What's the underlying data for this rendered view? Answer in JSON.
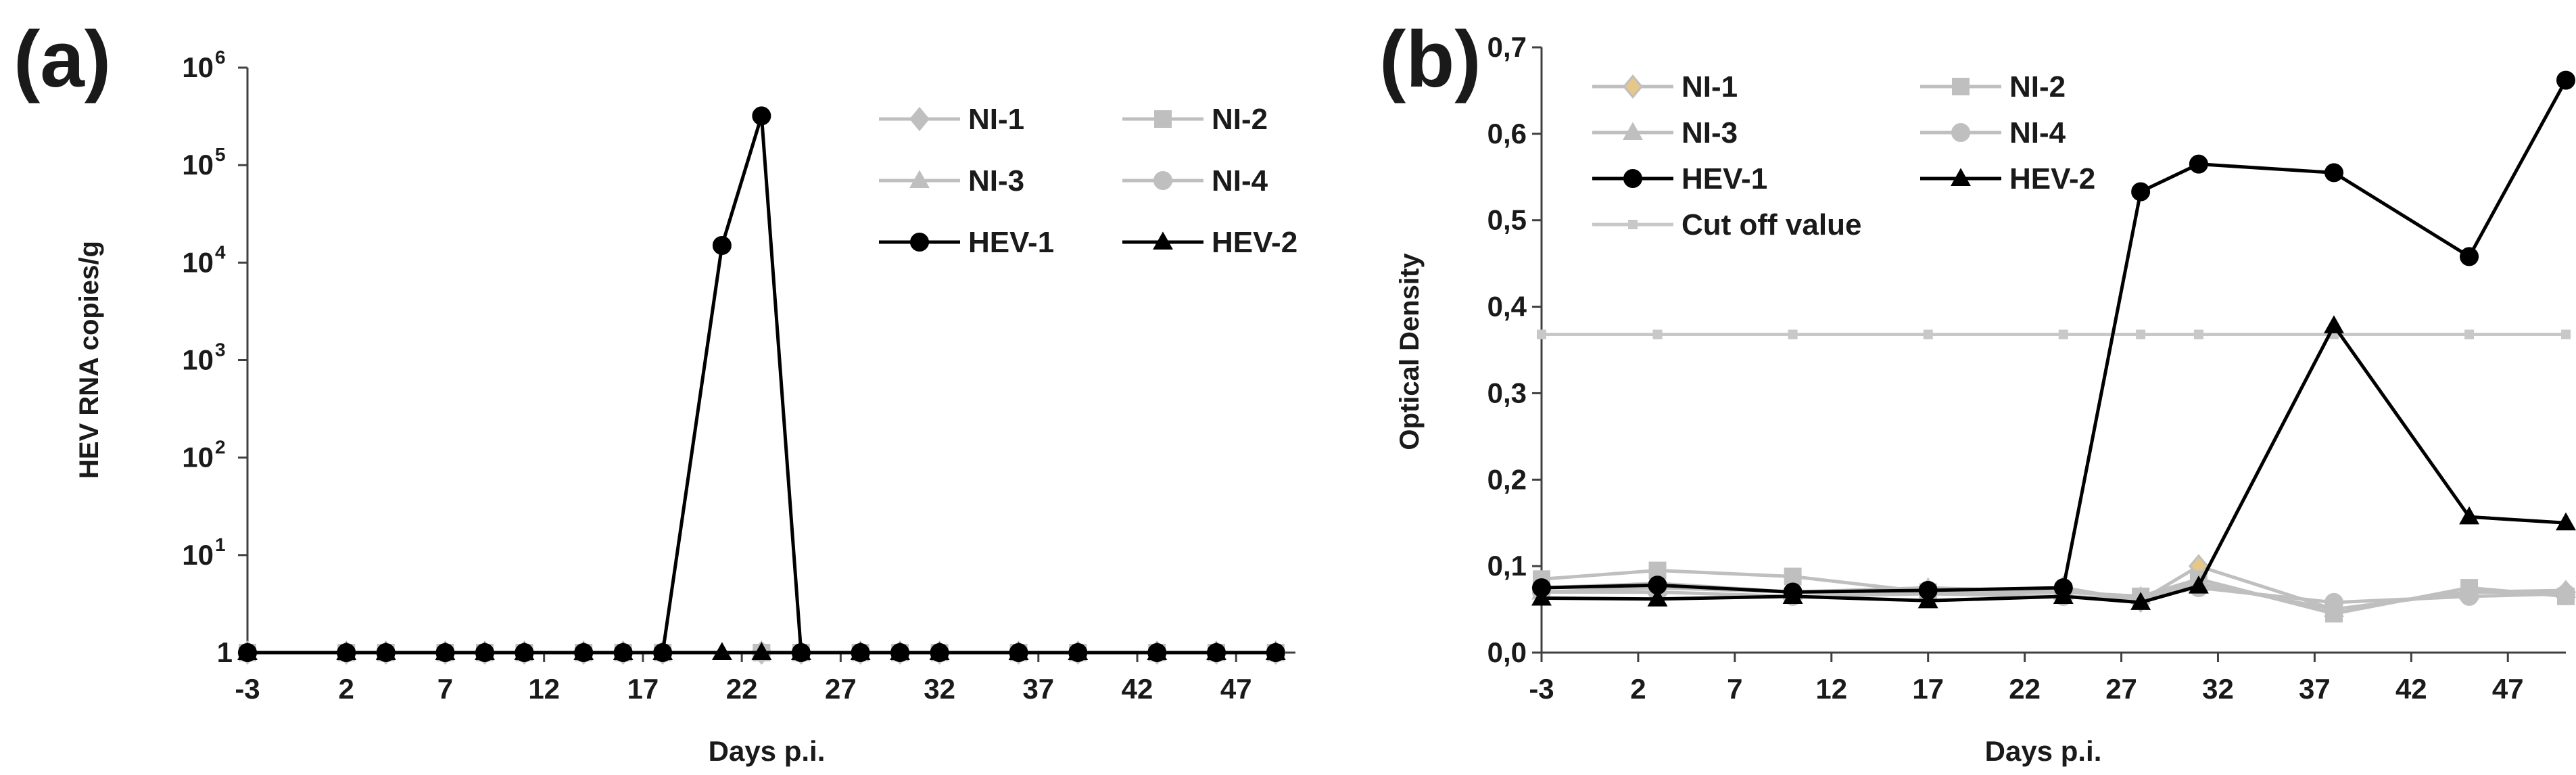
{
  "chart_data": [
    {
      "panel_label": "(a)",
      "type": "line",
      "yscale": "log",
      "xlabel": "Days p.i.",
      "ylabel": "HEV RNA copies/g",
      "xlim": [
        -3,
        50
      ],
      "xticks": [
        -3,
        2,
        7,
        12,
        17,
        22,
        27,
        32,
        37,
        42,
        47
      ],
      "ylim": [
        1,
        1000000
      ],
      "yticks": [
        {
          "value": 1,
          "base": "1",
          "exp": ""
        },
        {
          "value": 10,
          "base": "10",
          "exp": "1"
        },
        {
          "value": 100,
          "base": "10",
          "exp": "2"
        },
        {
          "value": 1000,
          "base": "10",
          "exp": "3"
        },
        {
          "value": 10000,
          "base": "10",
          "exp": "4"
        },
        {
          "value": 100000,
          "base": "10",
          "exp": "5"
        },
        {
          "value": 1000000,
          "base": "10",
          "exp": "6"
        }
      ],
      "legend_position": "top-right",
      "series": [
        {
          "name": "NI-1",
          "color": "#bfbfbf",
          "marker": "diamond",
          "x": [
            -3,
            2,
            4,
            7,
            9,
            11,
            14,
            16,
            18,
            23,
            25,
            28,
            30,
            32,
            36,
            39,
            43,
            46,
            49
          ],
          "y": [
            1,
            1,
            1,
            1,
            1,
            1,
            1,
            1,
            1,
            1,
            1,
            1,
            1,
            1,
            1,
            1,
            1,
            1,
            1
          ]
        },
        {
          "name": "NI-2",
          "color": "#bfbfbf",
          "marker": "square",
          "x": [
            -3,
            2,
            4,
            7,
            9,
            11,
            14,
            16,
            18,
            23,
            25,
            28,
            30,
            32,
            36,
            39,
            43,
            46,
            49
          ],
          "y": [
            1,
            1,
            1,
            1,
            1,
            1,
            1,
            1,
            1,
            1,
            1,
            1,
            1,
            1,
            1,
            1,
            1,
            1,
            1
          ]
        },
        {
          "name": "NI-3",
          "color": "#bfbfbf",
          "marker": "triangle",
          "x": [
            -3,
            2,
            4,
            7,
            9,
            11,
            14,
            16,
            18,
            23,
            25,
            28,
            30,
            32,
            36,
            39,
            43,
            46,
            49
          ],
          "y": [
            1,
            1,
            1,
            1,
            1,
            1,
            1,
            1,
            1,
            1,
            1,
            1,
            1,
            1,
            1,
            1,
            1,
            1,
            1
          ]
        },
        {
          "name": "NI-4",
          "color": "#bfbfbf",
          "marker": "circle",
          "x": [
            -3,
            2,
            4,
            7,
            9,
            11,
            14,
            16,
            18,
            23,
            25,
            28,
            30,
            32,
            36,
            39,
            43,
            46,
            49
          ],
          "y": [
            1,
            1,
            1,
            1,
            1,
            1,
            1,
            1,
            1,
            1,
            1,
            1,
            1,
            1,
            1,
            1,
            1,
            1,
            1
          ]
        },
        {
          "name": "HEV-1",
          "color": "#000000",
          "marker": "circle",
          "x": [
            -3,
            2,
            4,
            7,
            9,
            11,
            14,
            16,
            18,
            21,
            23,
            25,
            28,
            30,
            32,
            36,
            39,
            43,
            46,
            49
          ],
          "y": [
            1,
            1,
            1,
            1,
            1,
            1,
            1,
            1,
            1,
            15000,
            320000,
            1,
            1,
            1,
            1,
            1,
            1,
            1,
            1,
            1
          ]
        },
        {
          "name": "HEV-2",
          "color": "#000000",
          "marker": "triangle",
          "x": [
            -3,
            2,
            4,
            7,
            9,
            11,
            14,
            16,
            18,
            21,
            23,
            25,
            28,
            30,
            32,
            36,
            39,
            43,
            46,
            49
          ],
          "y": [
            1,
            1,
            1,
            1,
            1,
            1,
            1,
            1,
            1,
            1,
            1,
            1,
            1,
            1,
            1,
            1,
            1,
            1,
            1,
            1
          ]
        }
      ]
    },
    {
      "panel_label": "(b)",
      "type": "line",
      "xlabel": "Days p.i.",
      "ylabel": "Optical Density",
      "xlim": [
        -3,
        50
      ],
      "xticks": [
        -3,
        2,
        7,
        12,
        17,
        22,
        27,
        32,
        37,
        42,
        47
      ],
      "ylim": [
        0,
        0.7
      ],
      "yticks": [
        {
          "value": 0.0,
          "label": "0,0"
        },
        {
          "value": 0.1,
          "label": "0,1"
        },
        {
          "value": 0.2,
          "label": "0,2"
        },
        {
          "value": 0.3,
          "label": "0,3"
        },
        {
          "value": 0.4,
          "label": "0,4"
        },
        {
          "value": 0.5,
          "label": "0,5"
        },
        {
          "value": 0.6,
          "label": "0,6"
        },
        {
          "value": 0.7,
          "label": "0,7"
        }
      ],
      "legend_position": "top-left",
      "series": [
        {
          "name": "NI-1",
          "color": "#bfbfbf",
          "marker": "diamond",
          "marker_fill": "#e6c78a",
          "x": [
            -3,
            3,
            10,
            17,
            24,
            28,
            31,
            38,
            45,
            50
          ],
          "y": [
            0.075,
            0.08,
            0.07,
            0.07,
            0.075,
            0.06,
            0.1,
            0.05,
            0.07,
            0.07
          ]
        },
        {
          "name": "NI-2",
          "color": "#bfbfbf",
          "marker": "square",
          "x": [
            -3,
            3,
            10,
            17,
            24,
            28,
            31,
            38,
            45,
            50
          ],
          "y": [
            0.085,
            0.095,
            0.088,
            0.07,
            0.07,
            0.065,
            0.085,
            0.045,
            0.075,
            0.065
          ]
        },
        {
          "name": "NI-3",
          "color": "#bfbfbf",
          "marker": "triangle",
          "x": [
            -3,
            3,
            10,
            17,
            24,
            28,
            31,
            38,
            45,
            50
          ],
          "y": [
            0.07,
            0.075,
            0.07,
            0.075,
            0.07,
            0.065,
            0.08,
            0.05,
            0.07,
            0.072
          ]
        },
        {
          "name": "NI-4",
          "color": "#bfbfbf",
          "marker": "circle",
          "x": [
            -3,
            3,
            10,
            17,
            24,
            28,
            31,
            38,
            45,
            50
          ],
          "y": [
            0.07,
            0.07,
            0.065,
            0.068,
            0.065,
            0.062,
            0.075,
            0.058,
            0.065,
            0.068
          ]
        },
        {
          "name": "HEV-1",
          "color": "#000000",
          "marker": "circle",
          "x": [
            -3,
            3,
            10,
            17,
            24,
            28,
            31,
            38,
            45,
            50
          ],
          "y": [
            0.075,
            0.078,
            0.07,
            0.072,
            0.075,
            0.533,
            0.565,
            0.555,
            0.458,
            0.662
          ]
        },
        {
          "name": "HEV-2",
          "color": "#000000",
          "marker": "triangle",
          "x": [
            -3,
            3,
            10,
            17,
            24,
            28,
            31,
            38,
            45,
            50
          ],
          "y": [
            0.063,
            0.062,
            0.065,
            0.06,
            0.065,
            0.058,
            0.077,
            0.378,
            0.157,
            0.15
          ]
        },
        {
          "name": "Cut off value",
          "color": "#c8c8c8",
          "marker": "small-square",
          "x": [
            -3,
            3,
            10,
            17,
            24,
            28,
            31,
            38,
            45,
            50
          ],
          "y": [
            0.368,
            0.368,
            0.368,
            0.368,
            0.368,
            0.368,
            0.368,
            0.368,
            0.368,
            0.368
          ]
        }
      ]
    }
  ]
}
